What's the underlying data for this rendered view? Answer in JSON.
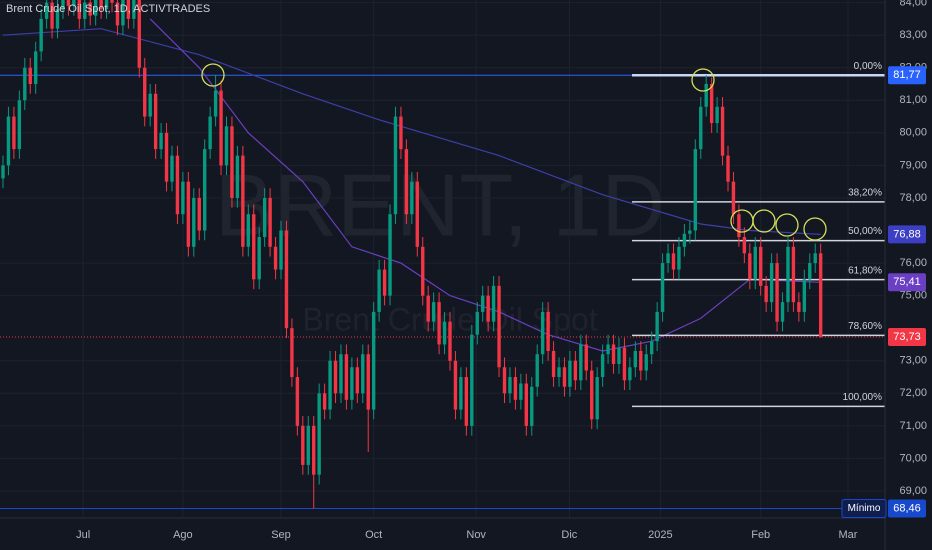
{
  "chart_data": {
    "type": "candlestick",
    "title": "Brent Crude Oil Spot, 1D, ACTIVTRADES",
    "watermark": "BRENT, 1D",
    "watermark_subtitle": "Brent Crude Oil Spot",
    "up_color": "#089981",
    "down_color": "#f23645",
    "grid": true,
    "xlim": [
      -0.55,
      161.8
    ],
    "ylim": [
      68.17,
      84.08
    ],
    "xticks": [
      {
        "value": 14.7,
        "label": "Jul"
      },
      {
        "value": 33,
        "label": "Ago"
      },
      {
        "value": 51,
        "label": "Sep"
      },
      {
        "value": 68,
        "label": "Oct"
      },
      {
        "value": 86.8,
        "label": "Nov"
      },
      {
        "value": 103.9,
        "label": "Dic"
      },
      {
        "value": 120.6,
        "label": "2025"
      },
      {
        "value": 139,
        "label": "Feb"
      },
      {
        "value": 155,
        "label": "Mar"
      }
    ],
    "yticks": [
      {
        "value": 84,
        "label": "84,00"
      },
      {
        "value": 83,
        "label": "83,00"
      },
      {
        "value": 82,
        "label": "82,00"
      },
      {
        "value": 81,
        "label": "81,00"
      },
      {
        "value": 80,
        "label": "80,00"
      },
      {
        "value": 79,
        "label": "79,00"
      },
      {
        "value": 78,
        "label": "78,00"
      },
      {
        "value": 76,
        "label": "76,00"
      },
      {
        "value": 75,
        "label": "75,00"
      },
      {
        "value": 73,
        "label": "73,00"
      },
      {
        "value": 72,
        "label": "72,00"
      },
      {
        "value": 71,
        "label": "71,00"
      },
      {
        "value": 70,
        "label": "70,00"
      },
      {
        "value": 69,
        "label": "69,00"
      }
    ],
    "open": [
      78.6,
      79,
      80.5,
      79.5,
      81,
      82,
      81.5,
      82.5,
      83.5,
      84,
      83.2,
      83.8,
      84.3,
      83.9,
      84.2,
      83.5,
      84,
      83.6,
      84.2,
      83.8,
      84.3,
      84,
      83.3,
      84.2,
      83.5,
      84.2,
      82,
      80.5,
      81.2,
      79.5,
      80,
      78.5,
      79.3,
      77.5,
      78.5,
      76.5,
      78,
      77,
      79.5,
      80.5,
      81.3,
      79,
      80.2,
      78,
      79.3,
      76.5,
      77.5,
      75.5,
      76.8,
      78,
      76.5,
      75.8,
      77,
      74,
      72.5,
      71,
      69.8,
      71,
      69.5,
      72,
      71.5,
      73,
      72,
      73.2,
      71.8,
      72.8,
      72,
      73.2,
      71.5,
      74.5,
      75.8,
      75,
      77.5,
      80.5,
      79.5,
      77.5,
      78.5,
      76.5,
      75,
      74.2,
      74.8,
      73.5,
      74.2,
      73,
      71.5,
      72.5,
      71,
      73.8,
      74.5,
      75,
      74.2,
      75.3,
      72.8,
      72,
      72.5,
      71.8,
      72.3,
      71,
      72.2,
      73.2,
      74.5,
      73.3,
      72.5,
      72.8,
      72.2,
      73,
      72.4,
      73.5,
      72.7,
      71.2,
      72.5,
      73.2,
      73.5,
      72.9,
      73.4,
      72.4,
      72.8,
      73.3,
      72.7,
      73.2,
      73.6,
      74.5,
      76,
      76.3,
      75.8,
      76.5,
      76.9,
      77,
      79.5,
      80.8,
      81.5,
      80.3,
      80.8,
      79.3,
      78.5,
      77.5,
      76.8,
      76.3,
      75.5,
      76.5,
      75.3,
      74.8,
      76,
      74.2,
      74.8,
      76.5,
      74.8,
      74.5,
      75.5,
      76,
      76.3
    ],
    "high": [
      79.3,
      80.8,
      80.8,
      81.3,
      82.3,
      82.3,
      82.8,
      83.8,
      84.3,
      84.3,
      84.1,
      84.6,
      84.6,
      84.5,
      84.5,
      84.3,
      84.3,
      84.5,
      84.5,
      84.6,
      84.6,
      84.3,
      84.5,
      84.5,
      84.5,
      84.5,
      82.3,
      81.5,
      81.5,
      80.3,
      80.3,
      79.6,
      79.6,
      78.8,
      78.8,
      78.3,
      78.3,
      79.8,
      80.8,
      81.77,
      81.6,
      80.5,
      80.5,
      79.6,
      79.6,
      77.8,
      77.8,
      77.1,
      78.3,
      78.3,
      76.8,
      77.3,
      77.3,
      74.3,
      72.8,
      71.3,
      71.3,
      71.3,
      72.3,
      72.3,
      73.3,
      73.3,
      73.5,
      73.5,
      73.1,
      73.1,
      73.5,
      73.5,
      74.8,
      76.1,
      76.1,
      77.8,
      80.8,
      80.8,
      79.8,
      78.8,
      78.8,
      76.8,
      75.3,
      75.1,
      75.1,
      74.5,
      74.5,
      73.3,
      72.8,
      72.8,
      74.1,
      74.8,
      75.3,
      75.3,
      75.6,
      75.6,
      73.1,
      72.8,
      72.8,
      72.6,
      72.6,
      72.5,
      73.5,
      74.8,
      74.8,
      73.6,
      73.1,
      73.1,
      73.3,
      73.3,
      73.8,
      73.8,
      73,
      72.8,
      73.5,
      73.8,
      73.8,
      73.7,
      73.7,
      73.1,
      73.6,
      73.6,
      73.5,
      73.9,
      74.8,
      76.3,
      76.6,
      76.6,
      76.8,
      77.2,
      77.3,
      79.8,
      81.1,
      81.77,
      81.7,
      81.1,
      81.1,
      79.6,
      78.8,
      77.8,
      77.1,
      76.6,
      76.8,
      76.8,
      75.6,
      76.3,
      76.3,
      75.1,
      76.8,
      76.8,
      75.1,
      75.8,
      76.3,
      76.6,
      76.6
    ],
    "low": [
      78.3,
      78.7,
      79.2,
      79.2,
      80.7,
      81.2,
      81.2,
      82.2,
      83.2,
      82.9,
      82.9,
      83.5,
      83.6,
      83.6,
      83.2,
      83.2,
      83.3,
      83.3,
      83.5,
      83.5,
      83.7,
      83,
      83,
      83.2,
      83.2,
      81.7,
      80.2,
      80.2,
      79.2,
      79.2,
      78.2,
      78.2,
      77.2,
      77.2,
      76.2,
      76.2,
      76.7,
      76.7,
      79.2,
      80.2,
      78.7,
      78.7,
      77.7,
      77.7,
      76.2,
      76.2,
      75.2,
      75.2,
      76.5,
      76.2,
      75.5,
      75.5,
      73.7,
      72.2,
      70.7,
      69.5,
      69.5,
      68.46,
      69.2,
      71.2,
      71.2,
      71.7,
      71.7,
      71.5,
      71.5,
      71.7,
      71.7,
      70.2,
      71.2,
      74.2,
      74.7,
      74.7,
      77.2,
      79.2,
      77.2,
      77.2,
      76.2,
      74.7,
      73.9,
      73.9,
      73.2,
      73.2,
      72.7,
      71.2,
      71.2,
      70.7,
      70.7,
      73.5,
      74.2,
      73.9,
      73.9,
      72.5,
      71.7,
      71.7,
      71.5,
      71.5,
      70.7,
      70.7,
      71.9,
      72.9,
      73,
      72.2,
      72.2,
      71.9,
      71.9,
      72.1,
      72.1,
      72.4,
      70.9,
      70.9,
      72.2,
      72.9,
      72.6,
      72.6,
      72.1,
      72.1,
      72.5,
      72.4,
      72.4,
      72.9,
      73.3,
      74.2,
      75.7,
      75.5,
      75.5,
      76.2,
      76.6,
      76.7,
      79.2,
      80.5,
      80,
      80,
      79,
      78.2,
      77.2,
      76.5,
      76,
      75.2,
      75.2,
      75,
      74.5,
      74.5,
      73.9,
      73.9,
      74.5,
      74.5,
      74.2,
      74.2,
      75.2,
      75.7,
      73.7
    ],
    "close": [
      79,
      80.5,
      79.5,
      81,
      82,
      81.5,
      82.5,
      83.5,
      84,
      83.2,
      83.8,
      84.3,
      83.9,
      84.2,
      83.5,
      84,
      83.6,
      84.2,
      83.8,
      84.3,
      84,
      83.3,
      84.2,
      83.5,
      84.2,
      82,
      80.5,
      81.2,
      79.5,
      80,
      78.5,
      79.3,
      77.5,
      78.5,
      76.5,
      78,
      77,
      79.5,
      80.5,
      81.3,
      79,
      80.2,
      78,
      79.3,
      76.5,
      77.5,
      75.5,
      76.8,
      78,
      76.5,
      75.8,
      77,
      74,
      72.5,
      71,
      69.8,
      71,
      69.5,
      72,
      71.5,
      73,
      72,
      73.2,
      71.8,
      72.8,
      72,
      73.2,
      71.5,
      74.5,
      75.8,
      75,
      77.5,
      80.5,
      79.5,
      77.5,
      78.5,
      76.5,
      75,
      74.2,
      74.8,
      73.5,
      74.2,
      73,
      71.5,
      72.5,
      71,
      73.8,
      74.5,
      75,
      74.2,
      75.3,
      72.8,
      72,
      72.5,
      71.8,
      72.3,
      71,
      72.2,
      73.2,
      74.5,
      73.3,
      72.5,
      72.8,
      72.2,
      73,
      72.4,
      73.5,
      72.7,
      71.2,
      72.5,
      73.2,
      73.5,
      72.9,
      73.4,
      72.4,
      72.8,
      73.3,
      72.7,
      73.2,
      73.6,
      74.5,
      76,
      76.3,
      75.8,
      76.5,
      76.9,
      77,
      79.5,
      80.8,
      81.5,
      80.3,
      80.8,
      79.3,
      78.5,
      77.5,
      76.8,
      76.3,
      75.5,
      76.5,
      75.3,
      74.8,
      76,
      74.2,
      74.8,
      76.5,
      74.8,
      74.5,
      75.5,
      76,
      76.3,
      73.73
    ],
    "moving_averages": [
      {
        "color": "#3d3fa8",
        "x": [
          0,
          18,
          36,
          55,
          69,
          91,
          110,
          128,
          137,
          150
        ],
        "values": [
          83.0,
          83.2,
          82.4,
          81.2,
          80.4,
          79.3,
          78.1,
          77.2,
          77.0,
          76.88
        ]
      },
      {
        "color": "#6a3fc0",
        "x": [
          27,
          36,
          45,
          55,
          64,
          73,
          82,
          91,
          100,
          110,
          119,
          128,
          137,
          150
        ],
        "values": [
          83.5,
          82,
          80,
          78.5,
          76.5,
          76,
          75,
          74.5,
          73.8,
          73.3,
          73.6,
          74.3,
          75.5,
          75.41
        ]
      }
    ],
    "fib_levels": [
      {
        "value": 81.77,
        "label": "0,00%"
      },
      {
        "value": 77.88,
        "label": "38,20%"
      },
      {
        "value": 76.69,
        "label": "50,00%"
      },
      {
        "value": 75.49,
        "label": "61,80%"
      },
      {
        "value": 73.78,
        "label": "78,60%"
      },
      {
        "value": 71.6,
        "label": "100,00%"
      }
    ],
    "price_labels": [
      {
        "value": 81.77,
        "label": "81,77",
        "color": "#2962ff"
      },
      {
        "value": 76.88,
        "label": "76,88",
        "color": "#3c3fc4"
      },
      {
        "value": 75.41,
        "label": "75,41",
        "color": "#6b3fc4"
      },
      {
        "value": 73.73,
        "label": "73,73",
        "color": "#f23645"
      }
    ],
    "minimum": {
      "name": "Mínimo",
      "value": 68.46,
      "label": "68,46",
      "color": "#1848cc"
    }
  }
}
